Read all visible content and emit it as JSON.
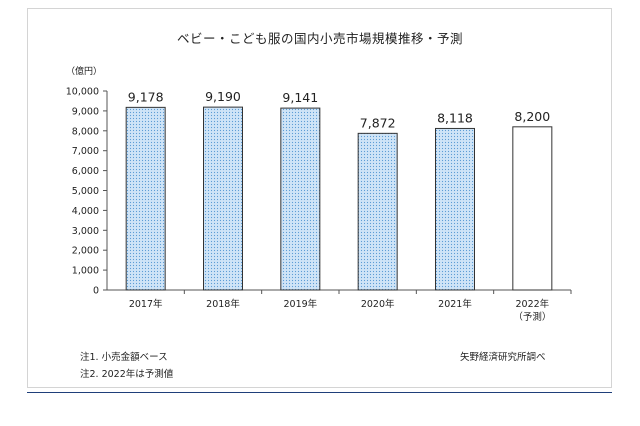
{
  "chart_data": {
    "type": "bar",
    "title": "ベビー・こども服の国内小売市場規模推移・予測",
    "ylabel": "（億円）",
    "xlabel": "",
    "ylim": [
      0,
      10000
    ],
    "yticks": [
      "0",
      "1,000",
      "2,000",
      "3,000",
      "4,000",
      "5,000",
      "6,000",
      "7,000",
      "8,000",
      "9,000",
      "10,000"
    ],
    "categories": [
      "2017年",
      "2018年",
      "2019年",
      "2020年",
      "2021年",
      "2022年"
    ],
    "category_notes": [
      "",
      "",
      "",
      "",
      "",
      "（予測）"
    ],
    "values": [
      9178,
      9190,
      9141,
      7872,
      8118,
      8200
    ],
    "data_labels": [
      "9,178",
      "9,190",
      "9,141",
      "7,872",
      "8,118",
      "8,200"
    ],
    "forecast": [
      false,
      false,
      false,
      false,
      false,
      true
    ],
    "grid": false,
    "legend": "none",
    "colors": {
      "actual_fill": "#cfe4f7",
      "actual_dot": "#5b9bd5",
      "forecast_fill": "#ffffff",
      "bar_stroke": "#333333"
    }
  },
  "notes": [
    "注1. 小売金額ベース",
    "注2. 2022年は予測値"
  ],
  "source": "矢野経済研究所調べ"
}
